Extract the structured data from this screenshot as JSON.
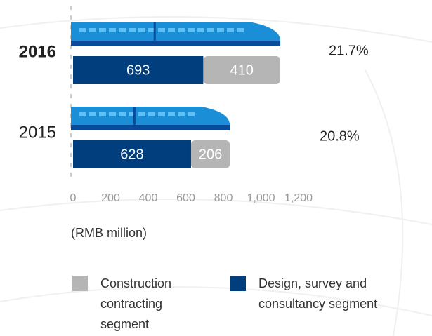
{
  "chart_data": {
    "type": "stacked-bar-horizontal",
    "categories": [
      "2016",
      "2015"
    ],
    "series": [
      {
        "name": "Design, survey and consultancy segment",
        "color": "#003e7e",
        "values": [
          693,
          628
        ]
      },
      {
        "name": "Construction contracting segment",
        "color": "#b5b5b5",
        "values": [
          410,
          206
        ]
      }
    ],
    "annotations": [
      "21.7%",
      "20.8%"
    ],
    "xlim": [
      0,
      1200
    ],
    "xticks": [
      0,
      200,
      400,
      600,
      800,
      {
        "value": 1000,
        "label": "1,000"
      },
      {
        "value": 1200,
        "label": "1,200"
      }
    ],
    "x_label": "(RMB million)"
  }
}
